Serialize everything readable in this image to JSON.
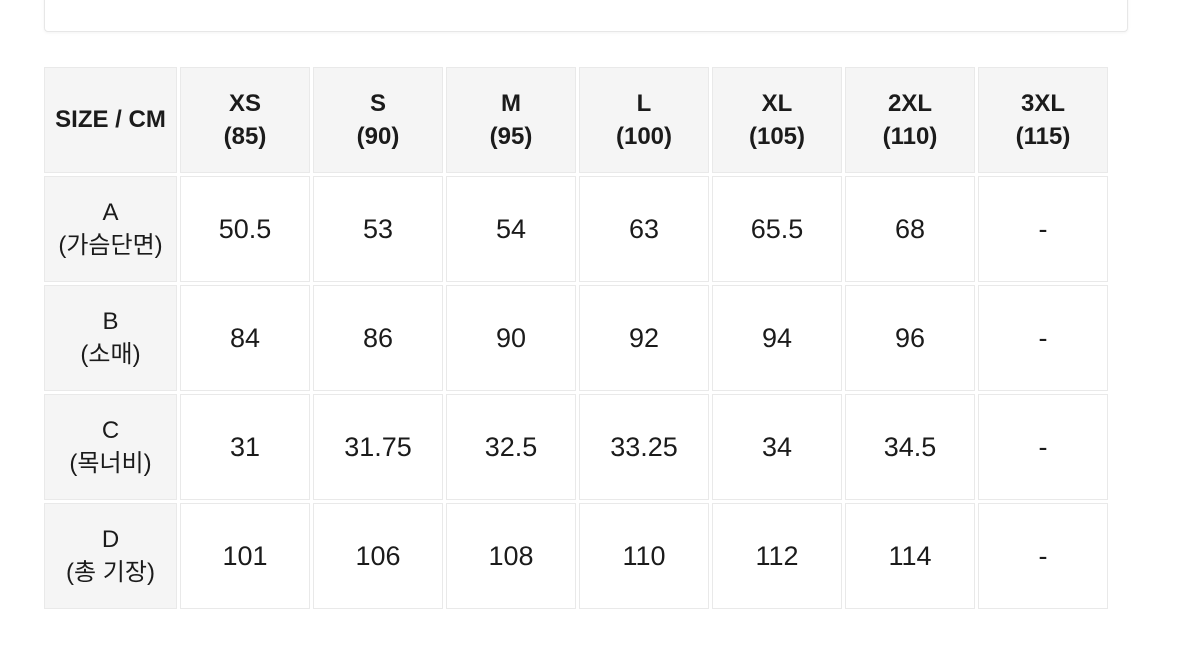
{
  "colors": {
    "page_background": "#ffffff",
    "header_cell_background": "#f5f5f5",
    "cell_border": "#e9e9e9",
    "text": "#1b1b1b"
  },
  "table": {
    "corner_header": "SIZE / CM",
    "columns": [
      {
        "label": "XS",
        "sub": "(85)"
      },
      {
        "label": "S",
        "sub": "(90)"
      },
      {
        "label": "M",
        "sub": "(95)"
      },
      {
        "label": "L",
        "sub": "(100)"
      },
      {
        "label": "XL",
        "sub": "(105)"
      },
      {
        "label": "2XL",
        "sub": "(110)"
      },
      {
        "label": "3XL",
        "sub": "(115)"
      }
    ],
    "rows": [
      {
        "label": "A",
        "sublabel": "(가슴단면)",
        "values": [
          "50.5",
          "53",
          "54",
          "63",
          "65.5",
          "68",
          "-"
        ]
      },
      {
        "label": "B",
        "sublabel": "(소매)",
        "values": [
          "84",
          "86",
          "90",
          "92",
          "94",
          "96",
          "-"
        ]
      },
      {
        "label": "C",
        "sublabel": "(목너비)",
        "values": [
          "31",
          "31.75",
          "32.5",
          "33.25",
          "34",
          "34.5",
          "-"
        ]
      },
      {
        "label": "D",
        "sublabel": "(총 기장)",
        "values": [
          "101",
          "106",
          "108",
          "110",
          "112",
          "114",
          "-"
        ]
      }
    ]
  },
  "chart_data": {
    "type": "table",
    "title": "SIZE / CM",
    "categories": [
      "XS (85)",
      "S (90)",
      "M (95)",
      "L (100)",
      "XL (105)",
      "2XL (110)",
      "3XL (115)"
    ],
    "series": [
      {
        "name": "A (가슴단면)",
        "values": [
          50.5,
          53,
          54,
          63,
          65.5,
          68,
          null
        ]
      },
      {
        "name": "B (소매)",
        "values": [
          84,
          86,
          90,
          92,
          94,
          96,
          null
        ]
      },
      {
        "name": "C (목너비)",
        "values": [
          31,
          31.75,
          32.5,
          33.25,
          34,
          34.5,
          null
        ]
      },
      {
        "name": "D (총 기장)",
        "values": [
          101,
          106,
          108,
          110,
          112,
          114,
          null
        ]
      }
    ]
  }
}
